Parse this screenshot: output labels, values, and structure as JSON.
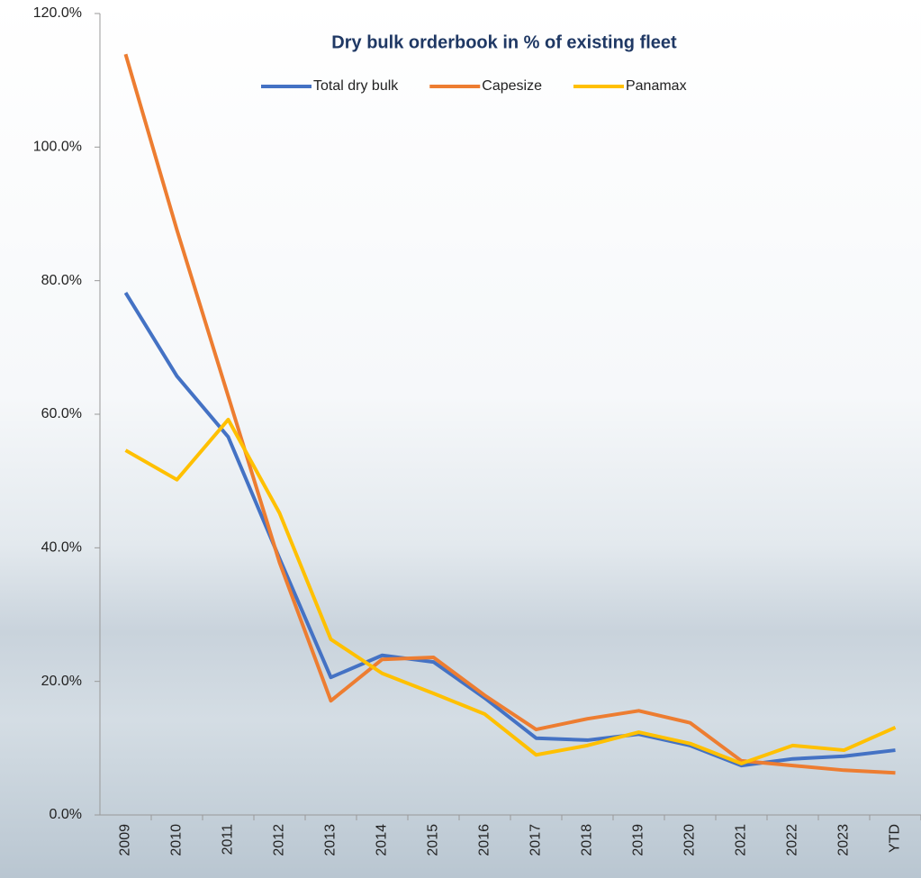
{
  "chart_data": {
    "type": "line",
    "title": "Dry bulk orderbook in % of existing fleet",
    "categories": [
      "2009",
      "2010",
      "2011",
      "2012",
      "2013",
      "2014",
      "2015",
      "2016",
      "2017",
      "2018",
      "2019",
      "2020",
      "2021",
      "2022",
      "2023",
      "YTD"
    ],
    "series": [
      {
        "name": "Total dry bulk",
        "color": "#4472c4",
        "values": [
          78.2,
          65.7,
          56.6,
          38.4,
          20.6,
          23.9,
          22.9,
          17.5,
          11.5,
          11.2,
          12.1,
          10.4,
          7.4,
          8.4,
          8.8,
          9.7
        ]
      },
      {
        "name": "Capesize",
        "color": "#ed7d31",
        "values": [
          113.9,
          87.6,
          62.7,
          37.8,
          17.1,
          23.3,
          23.6,
          17.9,
          12.8,
          14.4,
          15.6,
          13.8,
          8.1,
          7.4,
          6.7,
          6.3
        ]
      },
      {
        "name": "Panamax",
        "color": "#ffc000",
        "values": [
          54.6,
          50.2,
          59.2,
          45.2,
          26.3,
          21.2,
          18.2,
          15.1,
          9.0,
          10.4,
          12.4,
          10.7,
          7.7,
          10.4,
          9.7,
          13.1
        ]
      }
    ],
    "ylim": [
      0,
      120
    ],
    "yticks": [
      {
        "value": 0,
        "label": "0.0%"
      },
      {
        "value": 20,
        "label": "20.0%"
      },
      {
        "value": 40,
        "label": "40.0%"
      },
      {
        "value": 60,
        "label": "60.0%"
      },
      {
        "value": 80,
        "label": "80.0%"
      },
      {
        "value": 100,
        "label": "100.0%"
      },
      {
        "value": 120,
        "label": "120.0%"
      }
    ],
    "legend": "top"
  }
}
